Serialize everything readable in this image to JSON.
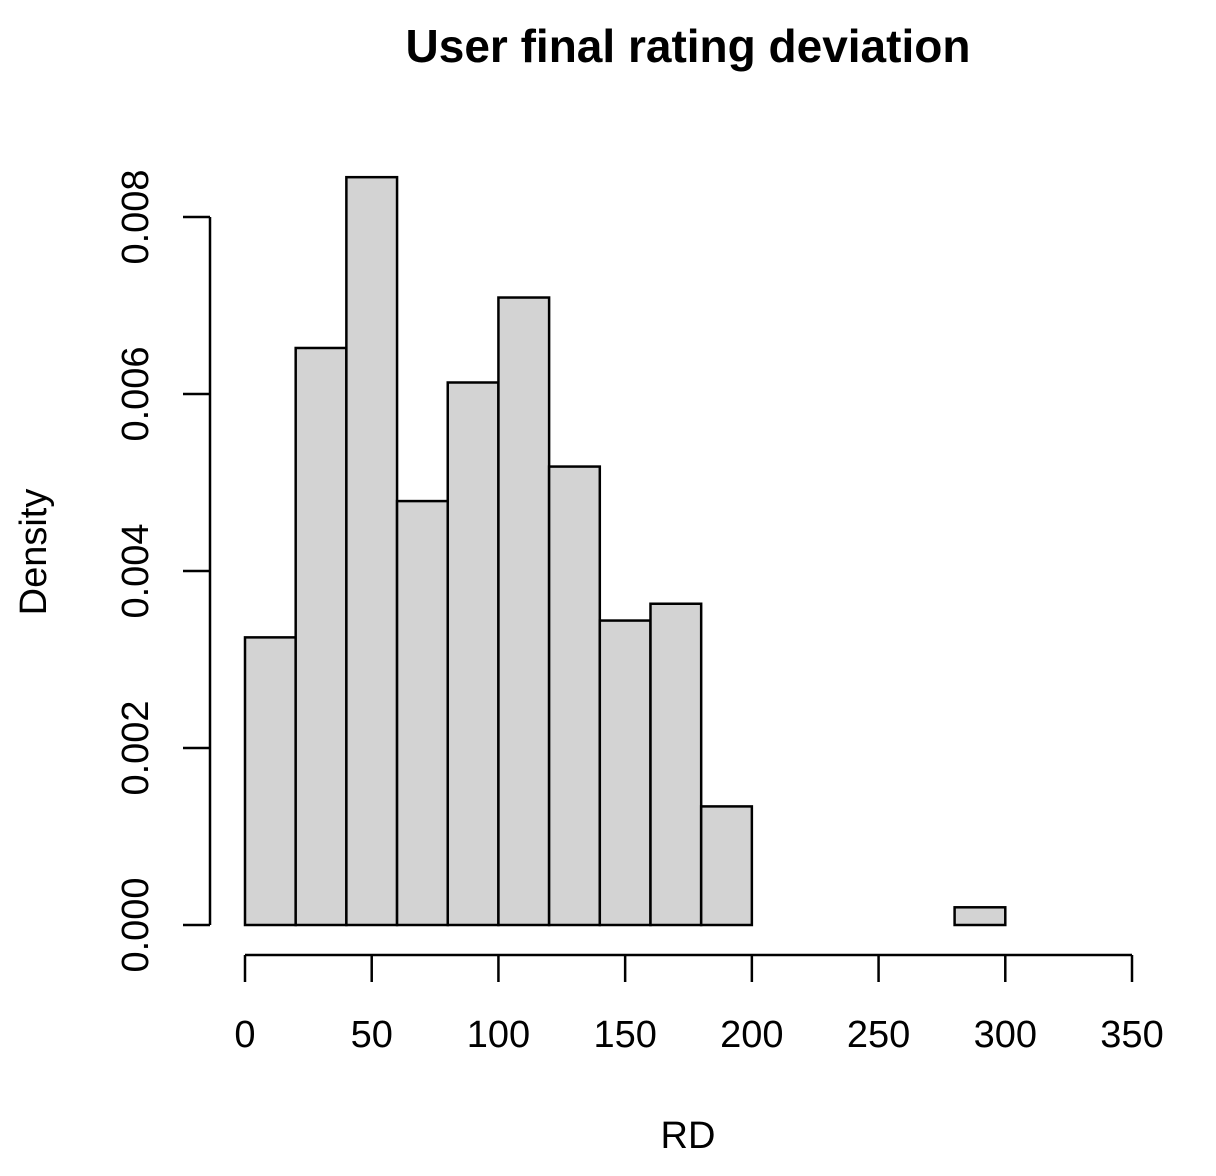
{
  "chart_data": {
    "type": "bar",
    "subtype": "histogram",
    "title": "User final rating deviation",
    "xlabel": "RD",
    "ylabel": "Density",
    "bins": [
      {
        "start": 0,
        "end": 20,
        "density": 0.00325
      },
      {
        "start": 20,
        "end": 40,
        "density": 0.00652
      },
      {
        "start": 40,
        "end": 60,
        "density": 0.00845
      },
      {
        "start": 60,
        "end": 80,
        "density": 0.00479
      },
      {
        "start": 80,
        "end": 100,
        "density": 0.00613
      },
      {
        "start": 100,
        "end": 120,
        "density": 0.00709
      },
      {
        "start": 120,
        "end": 140,
        "density": 0.00518
      },
      {
        "start": 140,
        "end": 160,
        "density": 0.00344
      },
      {
        "start": 160,
        "end": 180,
        "density": 0.00363
      },
      {
        "start": 180,
        "end": 200,
        "density": 0.00134
      },
      {
        "start": 200,
        "end": 220,
        "density": 0
      },
      {
        "start": 220,
        "end": 240,
        "density": 0
      },
      {
        "start": 240,
        "end": 260,
        "density": 0
      },
      {
        "start": 260,
        "end": 280,
        "density": 0
      },
      {
        "start": 280,
        "end": 300,
        "density": 0.0002
      }
    ],
    "xlim": [
      0,
      350
    ],
    "ylim": [
      0,
      0.008
    ],
    "xticks": [
      0,
      50,
      100,
      150,
      200,
      250,
      300,
      350
    ],
    "yticks": [
      0,
      0.002,
      0.004,
      0.006,
      0.008
    ],
    "xtick_labels": [
      "0",
      "50",
      "100",
      "150",
      "200",
      "250",
      "300",
      "350"
    ],
    "ytick_labels": [
      "0.000",
      "0.002",
      "0.004",
      "0.006",
      "0.008"
    ],
    "bar_fill": "#d3d3d3",
    "bar_stroke": "#000000",
    "grid": false,
    "legend": "none"
  }
}
